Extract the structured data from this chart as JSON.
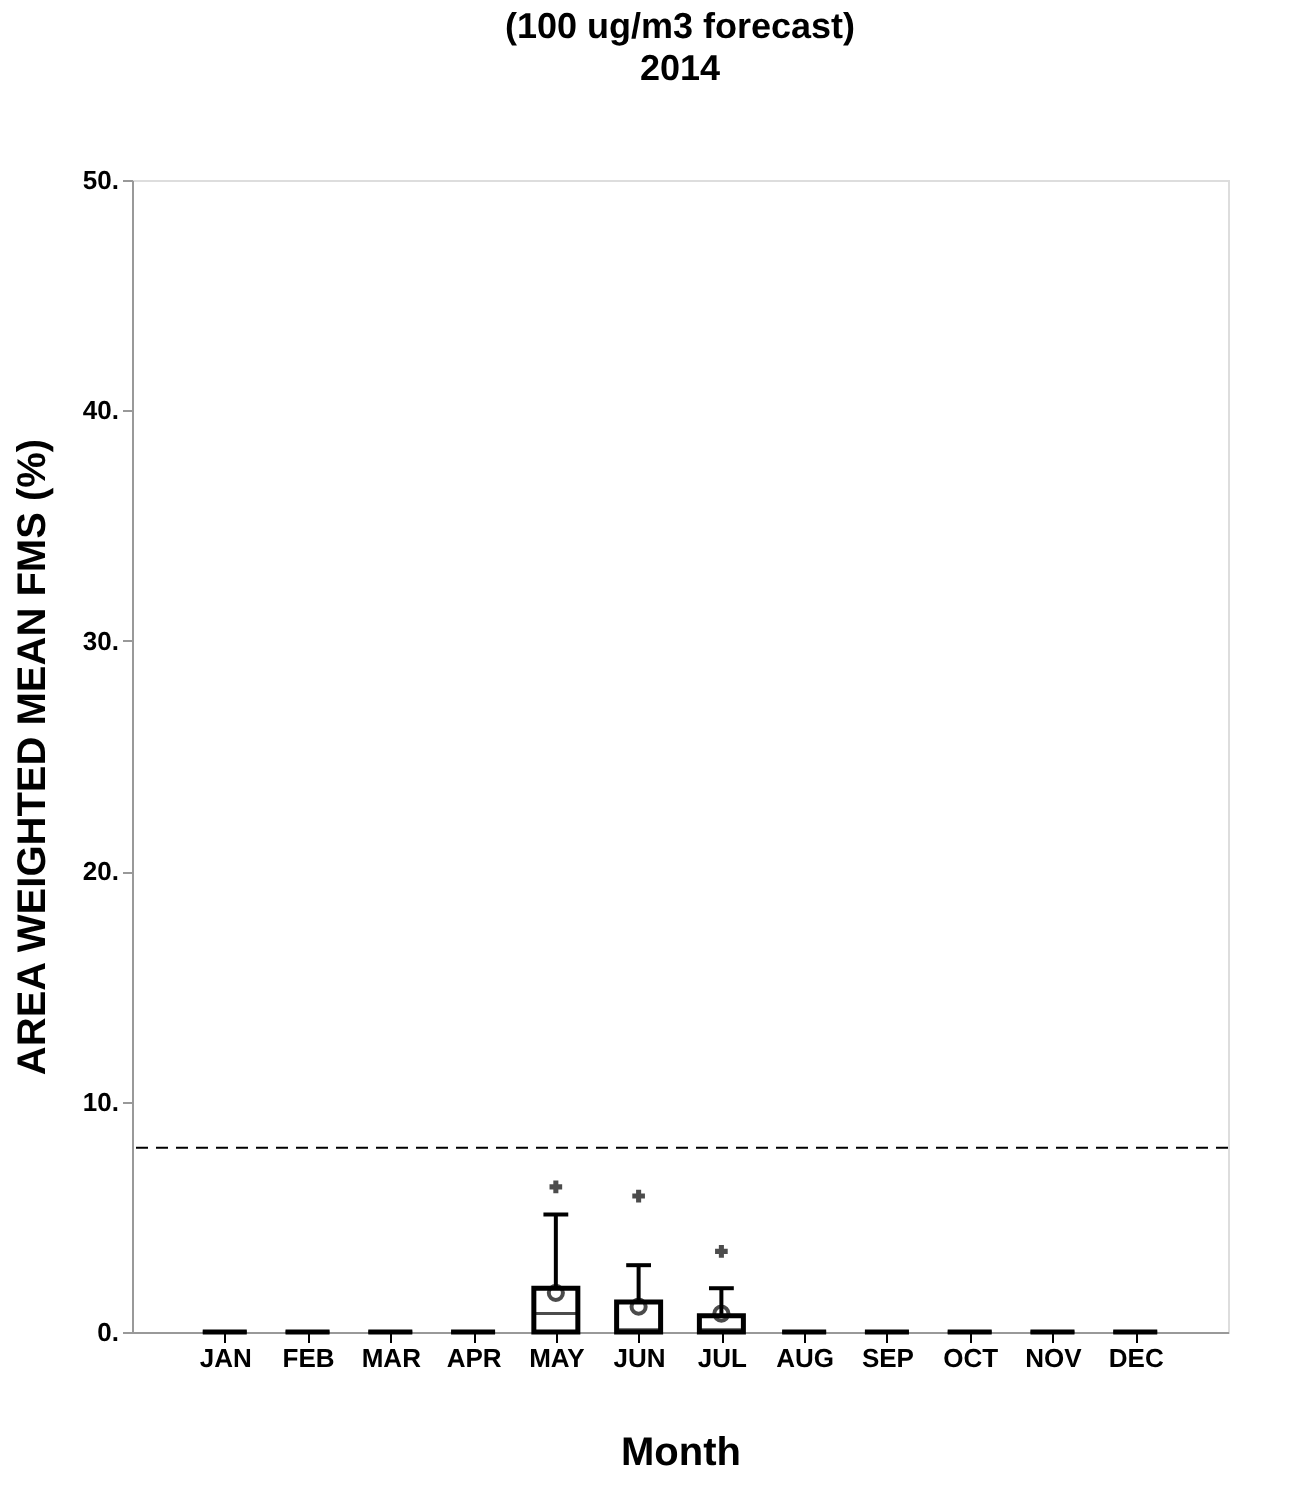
{
  "chart_data": {
    "type": "box",
    "title": "(100 ug/m3 forecast)",
    "subtitle": "2014",
    "xlabel": "Month",
    "ylabel": "AREA WEIGHTED MEAN FMS (%)",
    "categories": [
      "JAN",
      "FEB",
      "MAR",
      "APR",
      "MAY",
      "JUN",
      "JUL",
      "AUG",
      "SEP",
      "OCT",
      "NOV",
      "DEC"
    ],
    "boxes": [
      {
        "low": 0,
        "q1": 0,
        "median": 0,
        "q3": 0,
        "high": 0
      },
      {
        "low": 0,
        "q1": 0,
        "median": 0,
        "q3": 0,
        "high": 0
      },
      {
        "low": 0,
        "q1": 0,
        "median": 0,
        "q3": 0,
        "high": 0
      },
      {
        "low": 0,
        "q1": 0,
        "median": 0,
        "q3": 0,
        "high": 0
      },
      {
        "low": 0,
        "q1": 0,
        "median": 0.8,
        "q3": 1.9,
        "high": 5.1,
        "mean": 1.7,
        "outliers": [
          6.3
        ]
      },
      {
        "low": 0,
        "q1": 0,
        "median": 0.1,
        "q3": 1.3,
        "high": 2.9,
        "mean": 1.1,
        "outliers": [
          5.9
        ]
      },
      {
        "low": 0,
        "q1": 0,
        "median": 0.1,
        "q3": 0.7,
        "high": 1.9,
        "mean": 0.8,
        "outliers": [
          3.5
        ]
      },
      {
        "low": 0,
        "q1": 0,
        "median": 0,
        "q3": 0,
        "high": 0
      },
      {
        "low": 0,
        "q1": 0,
        "median": 0,
        "q3": 0,
        "high": 0
      },
      {
        "low": 0,
        "q1": 0,
        "median": 0,
        "q3": 0,
        "high": 0
      },
      {
        "low": 0,
        "q1": 0,
        "median": 0,
        "q3": 0,
        "high": 0
      },
      {
        "low": 0,
        "q1": 0,
        "median": 0,
        "q3": 0,
        "high": 0
      }
    ],
    "ylim": [
      0,
      50
    ],
    "yticks": [
      {
        "value": 0,
        "label": "0."
      },
      {
        "value": 10,
        "label": "10."
      },
      {
        "value": 20,
        "label": "20."
      },
      {
        "value": 30,
        "label": "30."
      },
      {
        "value": 40,
        "label": "40."
      },
      {
        "value": 50,
        "label": "50."
      }
    ],
    "ref_lines": [
      {
        "axis": "y",
        "value": 8,
        "line_style": "dashed",
        "color": "#000000"
      }
    ],
    "grid": false
  }
}
